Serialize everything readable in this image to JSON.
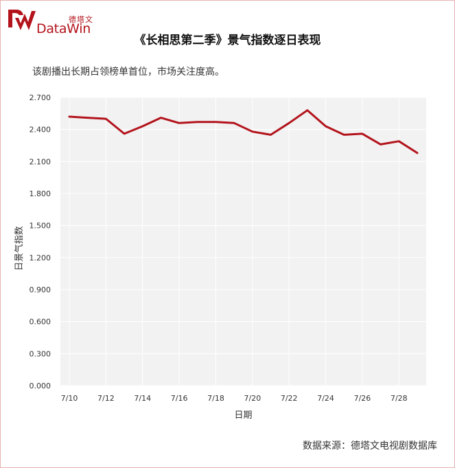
{
  "header": {
    "logo_cn": "德塔文",
    "logo_en": "DataWin",
    "title": "《长相思第二季》景气指数逐日表现",
    "subtitle": "该剧播出长期占领榜单首位，市场关注度高。"
  },
  "footer": {
    "source": "数据来源：德塔文电视剧数据库"
  },
  "colors": {
    "line": "#b3131b",
    "plot_bg": "#f2f2f2",
    "grid": "#ffffff",
    "brand": "#b3131b"
  },
  "chart_data": {
    "type": "line",
    "xlabel": "日期",
    "ylabel": "日景气指数",
    "ylim": [
      0,
      2.7
    ],
    "yticks": [
      "0.000",
      "0.300",
      "0.600",
      "0.900",
      "1.200",
      "1.500",
      "1.800",
      "2.100",
      "2.400",
      "2.700"
    ],
    "ytick_values": [
      0,
      0.3,
      0.6,
      0.9,
      1.2,
      1.5,
      1.8,
      2.1,
      2.4,
      2.7
    ],
    "x": [
      "7/10",
      "7/11",
      "7/12",
      "7/13",
      "7/14",
      "7/15",
      "7/16",
      "7/17",
      "7/18",
      "7/19",
      "7/20",
      "7/21",
      "7/22",
      "7/23",
      "7/24",
      "7/25",
      "7/26",
      "7/27",
      "7/28",
      "7/29"
    ],
    "xtick_labels": [
      "7/10",
      "7/12",
      "7/14",
      "7/16",
      "7/18",
      "7/20",
      "7/22",
      "7/24",
      "7/26",
      "7/28"
    ],
    "series": [
      {
        "values": [
          2.52,
          2.51,
          2.5,
          2.36,
          2.43,
          2.51,
          2.46,
          2.47,
          2.47,
          2.46,
          2.38,
          2.35,
          2.46,
          2.58,
          2.43,
          2.35,
          2.36,
          2.26,
          2.29,
          2.18
        ]
      }
    ],
    "grid": true,
    "legend": "none"
  }
}
